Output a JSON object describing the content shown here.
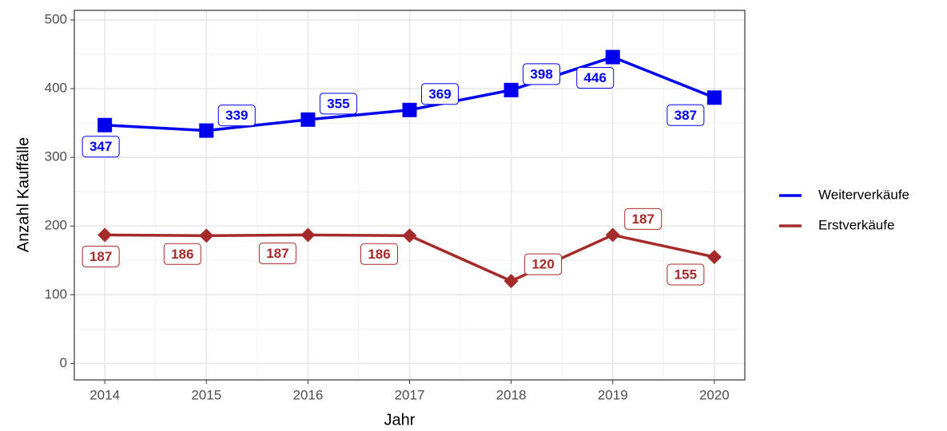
{
  "chart_data": {
    "type": "line",
    "x": [
      2014,
      2015,
      2016,
      2017,
      2018,
      2019,
      2020
    ],
    "series": [
      {
        "name": "Weiterverkäufe",
        "color": "#0000ee",
        "marker": "square",
        "values": [
          347,
          339,
          355,
          369,
          398,
          446,
          387
        ]
      },
      {
        "name": "Erstverkäufe",
        "color": "#a52a2a",
        "marker": "diamond",
        "values": [
          187,
          186,
          187,
          186,
          120,
          187,
          155
        ]
      }
    ],
    "x_label": "Jahr",
    "y_label": "Anzahl Kauffälle",
    "xlim": [
      2013.7,
      2020.3
    ],
    "xticks": [
      2014,
      2015,
      2016,
      2017,
      2018,
      2019,
      2020
    ],
    "ylim": [
      -24,
      514
    ],
    "yticks": [
      0,
      100,
      200,
      300,
      400,
      500
    ],
    "grid": true,
    "legend": "right"
  }
}
